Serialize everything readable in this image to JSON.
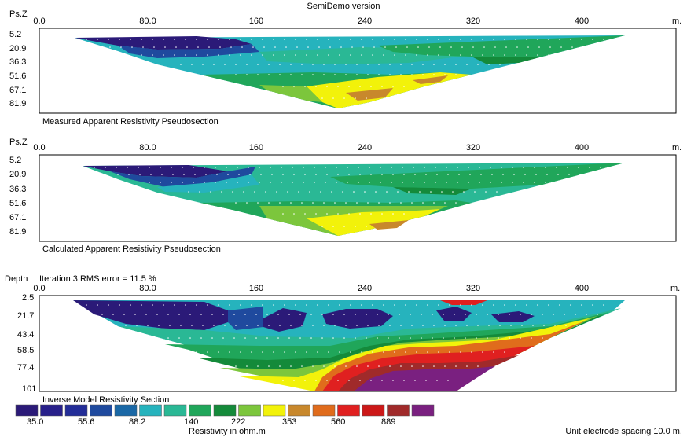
{
  "header": {
    "version_label": "SemiDemo version"
  },
  "panels": [
    {
      "id": "measured",
      "depth_axis_label": "Ps.Z",
      "depth_ticks": [
        "5.2",
        "20.9",
        "36.3",
        "51.6",
        "67.1",
        "81.9"
      ],
      "caption": "Measured Apparent Resistivity Pseudosection"
    },
    {
      "id": "calculated",
      "depth_axis_label": "Ps.Z",
      "depth_ticks": [
        "5.2",
        "20.9",
        "36.3",
        "51.6",
        "67.1",
        "81.9"
      ],
      "caption": "Calculated Apparent Resistivity Pseudosection"
    },
    {
      "id": "inverse",
      "depth_axis_label": "Depth",
      "depth_ticks": [
        "2.5",
        "21.7",
        "43.4",
        "58.5",
        "77.4",
        "101"
      ],
      "iteration_label": "Iteration 3 RMS error = 11.5 %",
      "caption": "Inverse Model Resistivity Section"
    }
  ],
  "distance_axis": {
    "ticks": [
      0.0,
      80.0,
      160,
      240,
      320,
      400
    ],
    "tick_labels": [
      "0.0",
      "80.0",
      "160",
      "240",
      "320",
      "400"
    ],
    "unit_label": "m."
  },
  "color_scale": {
    "colors": [
      "#2b1a78",
      "#28208a",
      "#232d98",
      "#1f4a9e",
      "#1a68a6",
      "#26b3bd",
      "#2ab895",
      "#20a65a",
      "#148a3a",
      "#7cc63c",
      "#f2f20a",
      "#c8882c",
      "#e06c1c",
      "#e02020",
      "#cc1818",
      "#a02a2a",
      "#7a2080"
    ],
    "labels": [
      "35.0",
      "55.6",
      "88.2",
      "140",
      "222",
      "353",
      "560",
      "889"
    ],
    "title": "Resistivity in ohm.m"
  },
  "footer": {
    "spacing_label": "Unit electrode spacing 10.0 m."
  },
  "chart_data": [
    {
      "type": "heatmap",
      "title": "Measured Apparent Resistivity Pseudosection",
      "xlabel": "m.",
      "ylabel": "Ps.Z",
      "xlim": [
        0,
        450
      ],
      "ylim": [
        0,
        90
      ],
      "y_inverted": true,
      "scale": "log",
      "x_ticks": [
        0,
        80,
        160,
        240,
        320,
        400
      ],
      "y_ticks": [
        5.2,
        20.9,
        36.3,
        51.6,
        67.1,
        81.9
      ],
      "section_extent": {
        "x_start": 30,
        "x_end": 435,
        "max_depth": 88
      },
      "zones": [
        {
          "value": 35.0,
          "x": [
            40,
            120
          ],
          "z": [
            5,
            20
          ]
        },
        {
          "value": 88.2,
          "x": [
            90,
            170
          ],
          "z": [
            5,
            30
          ]
        },
        {
          "value": 140,
          "x": [
            160,
            300
          ],
          "z": [
            5,
            35
          ]
        },
        {
          "value": 222,
          "x": [
            240,
            400
          ],
          "z": [
            10,
            40
          ]
        },
        {
          "value": 353,
          "x": [
            200,
            300
          ],
          "z": [
            50,
            85
          ]
        },
        {
          "value": 560,
          "x": [
            250,
            290
          ],
          "z": [
            65,
            80
          ]
        }
      ]
    },
    {
      "type": "heatmap",
      "title": "Calculated Apparent Resistivity Pseudosection",
      "xlabel": "m.",
      "ylabel": "Ps.Z",
      "xlim": [
        0,
        450
      ],
      "ylim": [
        0,
        90
      ],
      "y_inverted": true,
      "scale": "log",
      "x_ticks": [
        0,
        80,
        160,
        240,
        320,
        400
      ],
      "y_ticks": [
        5.2,
        20.9,
        36.3,
        51.6,
        67.1,
        81.9
      ],
      "section_extent": {
        "x_start": 30,
        "x_end": 435,
        "max_depth": 88
      },
      "zones": [
        {
          "value": 35.0,
          "x": [
            40,
            150
          ],
          "z": [
            5,
            25
          ]
        },
        {
          "value": 88.2,
          "x": [
            100,
            170
          ],
          "z": [
            5,
            30
          ]
        },
        {
          "value": 140,
          "x": [
            160,
            300
          ],
          "z": [
            5,
            40
          ]
        },
        {
          "value": 222,
          "x": [
            240,
            400
          ],
          "z": [
            10,
            45
          ]
        },
        {
          "value": 353,
          "x": [
            210,
            300
          ],
          "z": [
            55,
            88
          ]
        },
        {
          "value": 560,
          "x": [
            260,
            290
          ],
          "z": [
            70,
            80
          ]
        }
      ]
    },
    {
      "type": "heatmap",
      "title": "Inverse Model Resistivity Section",
      "subtitle": "Iteration 3 RMS error = 11.5 %",
      "xlabel": "m.",
      "ylabel": "Depth",
      "xlim": [
        0,
        450
      ],
      "ylim": [
        0,
        105
      ],
      "y_inverted": true,
      "scale": "log",
      "x_ticks": [
        0,
        80,
        160,
        240,
        320,
        400
      ],
      "y_ticks": [
        2.5,
        21.7,
        43.4,
        58.5,
        77.4,
        101
      ],
      "section_extent": {
        "x_start": 30,
        "x_end": 435,
        "max_depth": 101
      },
      "zones": [
        {
          "value": 35.0,
          "x": [
            40,
            340
          ],
          "z": [
            2,
            30
          ]
        },
        {
          "value": 140,
          "x": [
            40,
            430
          ],
          "z": [
            25,
            45
          ]
        },
        {
          "value": 222,
          "x": [
            120,
            360
          ],
          "z": [
            45,
            80
          ]
        },
        {
          "value": 353,
          "x": [
            160,
            300
          ],
          "z": [
            60,
            95
          ]
        },
        {
          "value": 560,
          "x": [
            210,
            320
          ],
          "z": [
            50,
            101
          ]
        },
        {
          "value": 889,
          "x": [
            220,
            330
          ],
          "z": [
            50,
            101
          ]
        },
        {
          "value": 1400,
          "x": [
            250,
            320
          ],
          "z": [
            70,
            101
          ]
        }
      ]
    }
  ]
}
